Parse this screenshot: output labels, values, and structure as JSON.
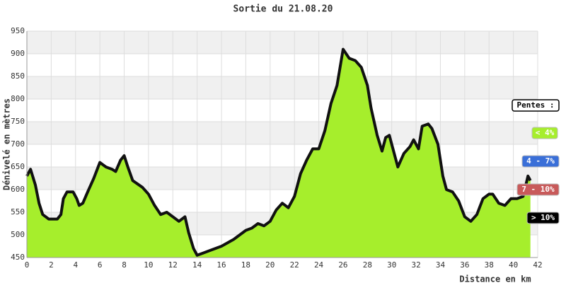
{
  "chart_data": {
    "type": "area",
    "title": "Sortie du 21.08.20",
    "x_label": "Distance en km",
    "y_label": "Dénivelé en mètres",
    "x": [
      0,
      0.3,
      0.7,
      1,
      1.3,
      1.8,
      2.5,
      2.8,
      3,
      3.3,
      3.8,
      4.1,
      4.3,
      4.6,
      5,
      5.5,
      6,
      6.5,
      7,
      7.3,
      7.7,
      8,
      8.3,
      8.7,
      9.5,
      10,
      10.5,
      11,
      11.5,
      12,
      12.5,
      13,
      13.3,
      13.7,
      14,
      14.5,
      15,
      16,
      17,
      17.5,
      18,
      18.5,
      19,
      19.5,
      20,
      20.5,
      21,
      21.5,
      22,
      22.5,
      23,
      23.5,
      24,
      24.5,
      25,
      25.5,
      26,
      26.5,
      27,
      27.5,
      28,
      28.3,
      28.8,
      29.2,
      29.5,
      29.8,
      30.2,
      30.5,
      31,
      31.5,
      31.8,
      32.2,
      32.5,
      33,
      33.3,
      33.8,
      34.2,
      34.5,
      35,
      35.5,
      36,
      36.5,
      37,
      37.5,
      38,
      38.3,
      38.8,
      39.3,
      39.8,
      40.3,
      40.8,
      41.2,
      41.4
    ],
    "series": [
      {
        "color": "#a6ee2c",
        "values": [
          630,
          645,
          610,
          570,
          545,
          535,
          535,
          545,
          580,
          595,
          595,
          580,
          565,
          570,
          595,
          625,
          660,
          650,
          645,
          640,
          665,
          675,
          650,
          620,
          605,
          590,
          565,
          545,
          550,
          540,
          530,
          540,
          505,
          470,
          455,
          460,
          465,
          475,
          490,
          500,
          510,
          515,
          525,
          520,
          530,
          555,
          570,
          560,
          585,
          635,
          665,
          690,
          690,
          730,
          790,
          830,
          910,
          890,
          885,
          870,
          830,
          780,
          720,
          685,
          715,
          720,
          680,
          650,
          680,
          695,
          710,
          690,
          740,
          745,
          735,
          700,
          630,
          600,
          595,
          575,
          540,
          530,
          545,
          580,
          590,
          590,
          570,
          565,
          580,
          580,
          585,
          630,
          620
        ]
      }
    ],
    "xlim": [
      0,
      42
    ],
    "ylim": [
      450,
      950
    ],
    "xticks": [
      0,
      2,
      4,
      6,
      8,
      10,
      12,
      14,
      16,
      18,
      20,
      22,
      24,
      26,
      28,
      30,
      32,
      34,
      36,
      38,
      40,
      42
    ],
    "yticks": [
      450,
      500,
      550,
      600,
      650,
      700,
      750,
      800,
      850,
      900,
      950
    ],
    "grid": true,
    "legend": {
      "title": "Pentes :",
      "items": [
        {
          "label": "< 4%",
          "color": "#a6ee2c"
        },
        {
          "label": "4 - 7%",
          "color": "#3a6fd8"
        },
        {
          "label": "7 - 10%",
          "color": "#c85a5a"
        },
        {
          "label": "> 10%",
          "color": "#000000"
        }
      ]
    }
  }
}
